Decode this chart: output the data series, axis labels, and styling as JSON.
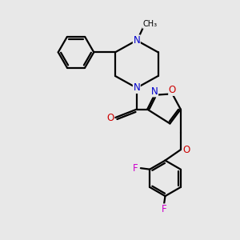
{
  "bg_color": "#e8e8e8",
  "bond_color": "#000000",
  "bond_width": 1.6,
  "atom_colors": {
    "N": "#0000cc",
    "O": "#cc0000",
    "F": "#cc00cc",
    "C": "#000000"
  },
  "font_size_atom": 8.5,
  "font_size_small": 7.5
}
